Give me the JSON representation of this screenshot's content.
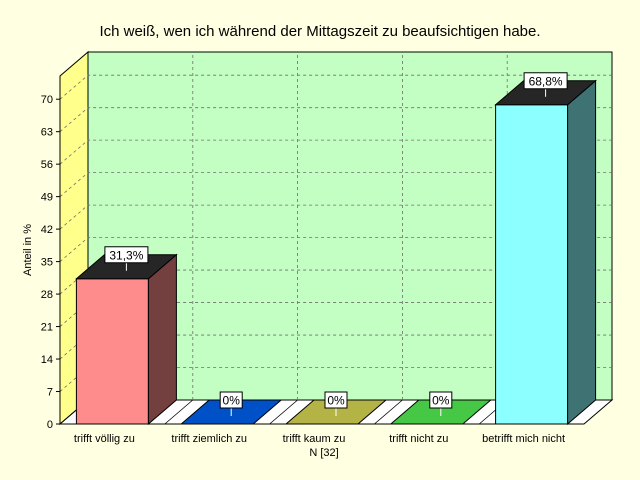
{
  "chart_data": {
    "type": "bar",
    "title": "Ich weiß, wen ich während der Mittagszeit zu beaufsichtigen habe.",
    "ylabel": "Anteil in %",
    "xlabel": "",
    "footnote": "N [32]",
    "categories": [
      "trifft völlig zu",
      "trifft ziemlich zu",
      "trifft kaum zu",
      "trifft nicht zu",
      "betrifft mich nicht"
    ],
    "values": [
      31.3,
      0,
      0,
      0,
      68.8
    ],
    "data_labels": [
      "31,3%",
      "0%",
      "0%",
      "0%",
      "68,8%"
    ],
    "colors": [
      "#ff8c8c",
      "#0050c8",
      "#b4b446",
      "#46c846",
      "#8cffff"
    ],
    "y_ticks": [
      0,
      7,
      14,
      21,
      28,
      35,
      42,
      49,
      56,
      63,
      70
    ],
    "ylim": [
      0,
      75
    ],
    "grid": true,
    "background_color": "#ffffe1",
    "plot_color": "#c3ffc3",
    "side_wall_color": "#ffff8c"
  }
}
